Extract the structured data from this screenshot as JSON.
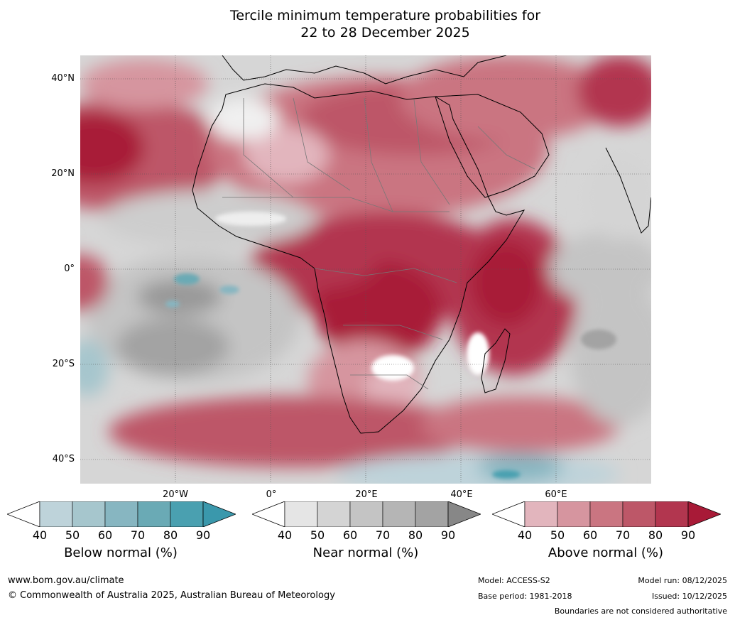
{
  "title": {
    "line1": "Tercile minimum temperature probabilities for",
    "line2": "22 to 28 December 2025"
  },
  "map": {
    "lat_labels": [
      "40°N",
      "20°N",
      "0°",
      "20°S",
      "40°S"
    ],
    "lon_labels": [
      "20°W",
      "0°",
      "20°E",
      "40°E",
      "60°E"
    ]
  },
  "colorbars": [
    {
      "title": "Below normal (%)",
      "ticks": [
        "40",
        "50",
        "60",
        "70",
        "80",
        "90"
      ],
      "colors": [
        "#ffffff",
        "#bed3da",
        "#a6c6cd",
        "#87b6c1",
        "#6aaab5",
        "#4aa0b0",
        "#3a98ac"
      ]
    },
    {
      "title": "Near normal (%)",
      "ticks": [
        "40",
        "50",
        "60",
        "70",
        "80",
        "90"
      ],
      "colors": [
        "#ffffff",
        "#e5e5e5",
        "#d4d4d4",
        "#c4c4c4",
        "#b5b5b5",
        "#a3a3a3",
        "#878787"
      ]
    },
    {
      "title": "Above normal (%)",
      "ticks": [
        "40",
        "50",
        "60",
        "70",
        "80",
        "90"
      ],
      "colors": [
        "#ffffff",
        "#e2b5bd",
        "#d6959f",
        "#ca7581",
        "#bd5768",
        "#b2364f",
        "#a81a37"
      ]
    }
  ],
  "footer": {
    "website": "www.bom.gov.au/climate",
    "copyright": "© Commonwealth of Australia 2025, Australian Bureau of Meteorology",
    "model": "Model: ACCESS-S2",
    "base_period": "Base period: 1981-2018",
    "model_run": "Model run: 08/12/2025",
    "issued": "Issued: 10/12/2025",
    "boundaries": "Boundaries are not considered authoritative"
  }
}
